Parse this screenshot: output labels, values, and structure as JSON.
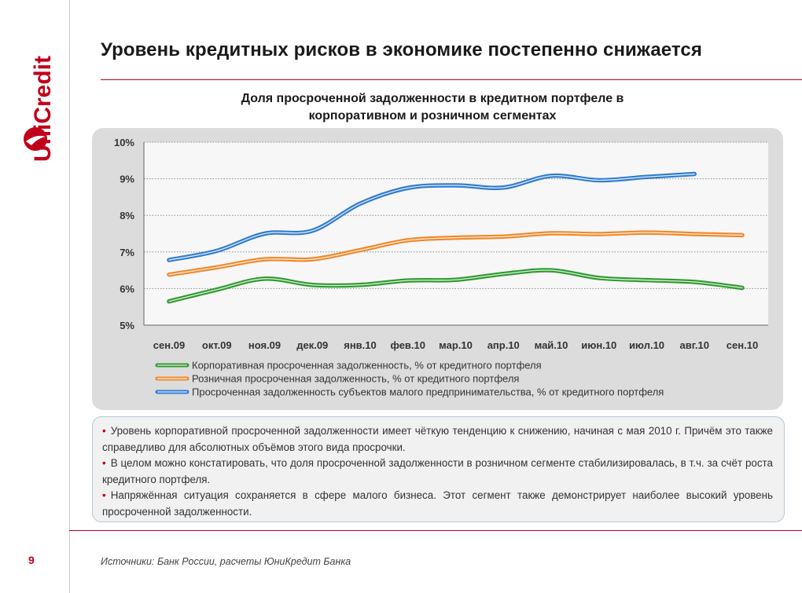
{
  "brand": {
    "name": "UniCredit",
    "color": "#c0001a"
  },
  "page": {
    "title": "Уровень кредитных рисков в экономике постепенно снижается",
    "number": "9",
    "sources": "Источники: Банк России, расчеты ЮниКредит Банка"
  },
  "chart_data": {
    "type": "line",
    "title_lines": [
      "Доля просроченной задолженности в кредитном портфеле в",
      "корпоративном и розничном сегментах"
    ],
    "categories": [
      "сен.09",
      "окт.09",
      "ноя.09",
      "дек.09",
      "янв.10",
      "фев.10",
      "мар.10",
      "апр.10",
      "май.10",
      "июн.10",
      "июл.10",
      "авг.10",
      "сен.10"
    ],
    "yticks": [
      "5%",
      "6%",
      "7%",
      "8%",
      "9%",
      "10%"
    ],
    "ylim": [
      5,
      10
    ],
    "grid": true,
    "legend_position": "bottom",
    "series": [
      {
        "name": "Корпоративная просроченная задолженность, % от кредитного портфеля",
        "color": "#2e9a2e",
        "values": [
          5.65,
          5.97,
          6.27,
          6.1,
          6.1,
          6.22,
          6.24,
          6.4,
          6.5,
          6.29,
          6.23,
          6.18,
          6.02
        ]
      },
      {
        "name": "Розничная просроченная задолженность, % от кредитного портфеля",
        "color": "#f0882a",
        "values": [
          6.38,
          6.58,
          6.8,
          6.8,
          7.05,
          7.32,
          7.39,
          7.42,
          7.51,
          7.49,
          7.53,
          7.49,
          7.46
        ]
      },
      {
        "name": "Просроченная задолженность субъектов малого предпринимательства, % от кредитного портфеля",
        "color": "#2f7bd0",
        "values": [
          6.78,
          7.03,
          7.5,
          7.58,
          8.32,
          8.75,
          8.82,
          8.76,
          9.08,
          8.96,
          9.05,
          9.13,
          null
        ]
      }
    ]
  },
  "notes": [
    "Уровень корпоративной просроченной задолженности имеет чёткую тенденцию к снижению, начиная с мая 2010 г. Причём это также справедливо для абсолютных объёмов этого вида просрочки.",
    "В целом можно констатировать, что доля просроченной задолженности в розничном сегменте стабилизировалась, в т.ч. за счёт роста кредитного портфеля.",
    "Напряжённая ситуация сохраняется в сфере малого бизнеса. Этот сегмент также демонстрирует наиболее высокий уровень просроченной задолженности."
  ]
}
